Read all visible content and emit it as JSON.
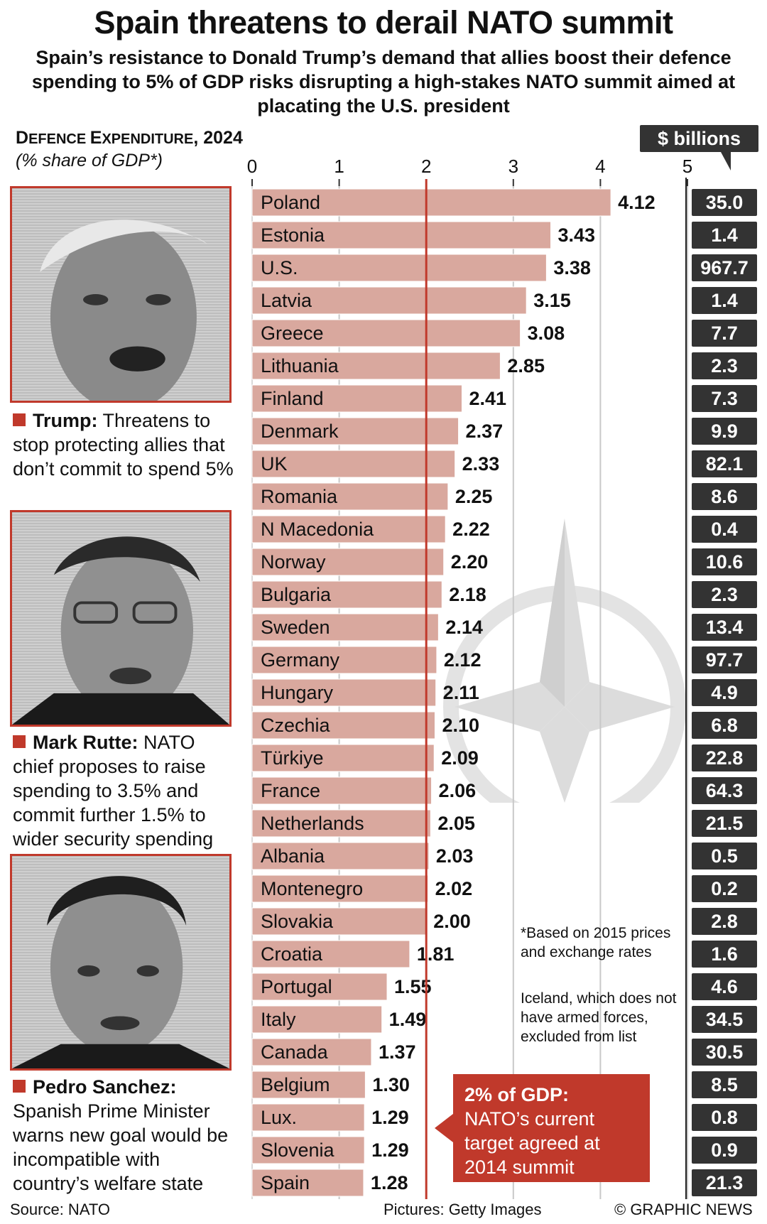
{
  "title": "Spain threatens to derail NATO summit",
  "subtitle": "Spain’s resistance to Donald Trump’s demand that allies boost their defence spending to 5% of GDP risks disrupting a high-stakes NATO summit aimed at placating the U.S. president",
  "chart_data": {
    "type": "bar",
    "orientation": "horizontal",
    "title_first": "D",
    "title_caps": "EFENCE ",
    "title_second": "E",
    "title_caps2": "XPENDITURE",
    "title_suffix": ", 2024",
    "subtitle": "(% share of GDP*)",
    "x_ticks": [
      "0",
      "1",
      "2",
      "3",
      "4",
      "5"
    ],
    "xlim": [
      0,
      5
    ],
    "reference_line": 2,
    "grid": true,
    "categories": [
      "Poland",
      "Estonia",
      "U.S.",
      "Latvia",
      "Greece",
      "Lithuania",
      "Finland",
      "Denmark",
      "UK",
      "Romania",
      "N Macedonia",
      "Norway",
      "Bulgaria",
      "Sweden",
      "Germany",
      "Hungary",
      "Czechia",
      "Türkiye",
      "France",
      "Netherlands",
      "Albania",
      "Montenegro",
      "Slovakia",
      "Croatia",
      "Portugal",
      "Italy",
      "Canada",
      "Belgium",
      "Lux.",
      "Slovenia",
      "Spain"
    ],
    "values": [
      4.12,
      3.43,
      3.38,
      3.15,
      3.08,
      2.85,
      2.41,
      2.37,
      2.33,
      2.25,
      2.22,
      2.2,
      2.18,
      2.14,
      2.12,
      2.11,
      2.1,
      2.09,
      2.06,
      2.05,
      2.03,
      2.02,
      2.0,
      1.81,
      1.55,
      1.49,
      1.37,
      1.3,
      1.29,
      1.29,
      1.28
    ],
    "value_labels": [
      "4.12",
      "3.43",
      "3.38",
      "3.15",
      "3.08",
      "2.85",
      "2.41",
      "2.37",
      "2.33",
      "2.25",
      "2.22",
      "2.20",
      "2.18",
      "2.14",
      "2.12",
      "2.11",
      "2.10",
      "2.09",
      "2.06",
      "2.05",
      "2.03",
      "2.02",
      "2.00",
      "1.81",
      "1.55",
      "1.49",
      "1.37",
      "1.30",
      "1.29",
      "1.29",
      "1.28"
    ],
    "billions_header": "$ billions",
    "billions": [
      "35.0",
      "1.4",
      "967.7",
      "1.4",
      "7.7",
      "2.3",
      "7.3",
      "9.9",
      "82.1",
      "8.6",
      "0.4",
      "10.6",
      "2.3",
      "13.4",
      "97.7",
      "4.9",
      "6.8",
      "22.8",
      "64.3",
      "21.5",
      "0.5",
      "0.2",
      "2.8",
      "1.6",
      "4.6",
      "34.5",
      "30.5",
      "8.5",
      "0.8",
      "0.9",
      "21.3"
    ],
    "colors": {
      "bar": "#d9a89e",
      "reference": "#c0392b",
      "billions_box": "#333333"
    }
  },
  "captions": [
    {
      "name": "Trump:",
      "text": " Threatens to stop protecting allies that don’t commit to spend 5%"
    },
    {
      "name": "Mark Rutte:",
      "text": " NATO chief proposes to raise spending to 3.5% and commit further 1.5% to wider security spending"
    },
    {
      "name": "Pedro Sanchez:",
      "text": " Spanish Prime Minister warns new goal would be incompatible with country’s welfare state"
    }
  ],
  "footnote1": "*Based on 2015 prices and exchange rates",
  "footnote2": "Iceland, which does not have armed forces, excluded from list",
  "target_box": {
    "heading": "2% of GDP:",
    "text": "NATO’s current target agreed at 2014 summit"
  },
  "footer": {
    "source": "Source: NATO",
    "pictures": "Pictures: Getty Images",
    "credit": "© GRAPHIC NEWS"
  },
  "icons": {
    "portraits": [
      "trump-portrait",
      "rutte-portrait",
      "sanchez-portrait"
    ],
    "emblem": "nato-compass-star"
  }
}
